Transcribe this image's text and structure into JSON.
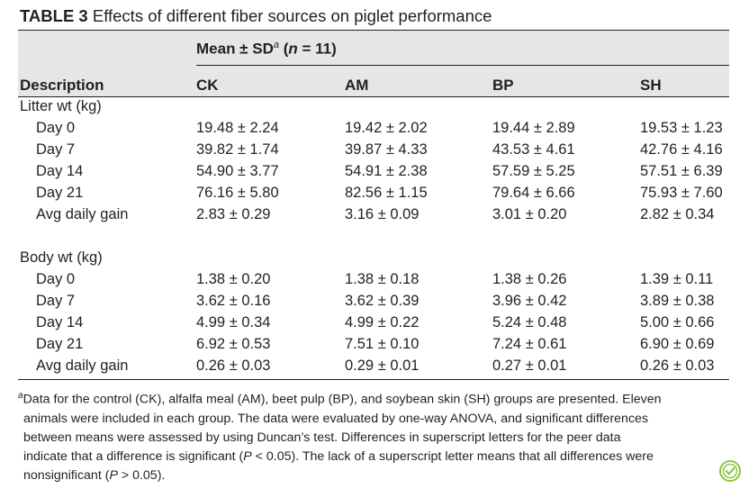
{
  "caption": {
    "label": "TABLE 3",
    "text": "Effects of different fiber sources on piglet performance"
  },
  "header": {
    "mean_prefix": "Mean ± SD",
    "mean_sup": "a",
    "mean_n_open": " (",
    "mean_n_var": "n",
    "mean_n_rest": " = 11)",
    "description": "Description",
    "columns": [
      "CK",
      "AM",
      "BP",
      "SH"
    ]
  },
  "sections": [
    {
      "title": "Litter wt (kg)",
      "rows": [
        {
          "label": "Day 0",
          "values": [
            "19.48 ± 2.24",
            "19.42 ± 2.02",
            "19.44 ± 2.89",
            "19.53 ± 1.23"
          ]
        },
        {
          "label": "Day 7",
          "values": [
            "39.82 ± 1.74",
            "39.87 ± 4.33",
            "43.53 ± 4.61",
            "42.76 ± 4.16"
          ]
        },
        {
          "label": "Day 14",
          "values": [
            "54.90 ± 3.77",
            "54.91 ± 2.38",
            "57.59 ± 5.25",
            "57.51 ± 6.39"
          ]
        },
        {
          "label": "Day 21",
          "values": [
            "76.16 ± 5.80",
            "82.56 ± 1.15",
            "79.64 ± 6.66",
            "75.93 ± 7.60"
          ]
        },
        {
          "label": "Avg daily gain",
          "values": [
            "2.83 ± 0.29",
            "3.16 ± 0.09",
            "3.01 ± 0.20",
            "2.82 ± 0.34"
          ]
        }
      ]
    },
    {
      "title": "Body wt (kg)",
      "rows": [
        {
          "label": "Day 0",
          "values": [
            "1.38 ± 0.20",
            "1.38 ± 0.18",
            "1.38 ± 0.26",
            "1.39 ± 0.11"
          ]
        },
        {
          "label": "Day 7",
          "values": [
            "3.62 ± 0.16",
            "3.62 ± 0.39",
            "3.96 ± 0.42",
            "3.89 ± 0.38"
          ]
        },
        {
          "label": "Day 14",
          "values": [
            "4.99 ± 0.34",
            "4.99 ± 0.22",
            "5.24 ± 0.48",
            "5.00 ± 0.66"
          ]
        },
        {
          "label": "Day 21",
          "values": [
            "6.92 ± 0.53",
            "7.51 ± 0.10",
            "7.24 ± 0.61",
            "6.90 ± 0.69"
          ]
        },
        {
          "label": "Avg daily gain",
          "values": [
            "0.26 ± 0.03",
            "0.29 ± 0.01",
            "0.27 ± 0.01",
            "0.26 ± 0.03"
          ]
        }
      ]
    }
  ],
  "footnote": {
    "marker": "a",
    "lines": [
      "Data for the control (CK), alfalfa meal (AM), beet pulp (BP), and soybean skin (SH) groups are presented. Eleven",
      "animals were included in each group. The data were evaluated by one-way ANOVA, and significant differences",
      "between means were assessed by using Duncan’s test. Differences in superscript letters for the peer data"
    ],
    "line4_a": "indicate that a difference is significant (",
    "line4_p": "P",
    "line4_b": " < 0.05). The lack of a superscript letter means that all differences were",
    "line5_a": "nonsignificant (",
    "line5_p": "P",
    "line5_b": " > 0.05)."
  },
  "badge_icon": "checkmark-badge-icon",
  "colors": {
    "header_band": "#e6e6e7",
    "text": "#231f20",
    "badge": "#8dc63f"
  }
}
